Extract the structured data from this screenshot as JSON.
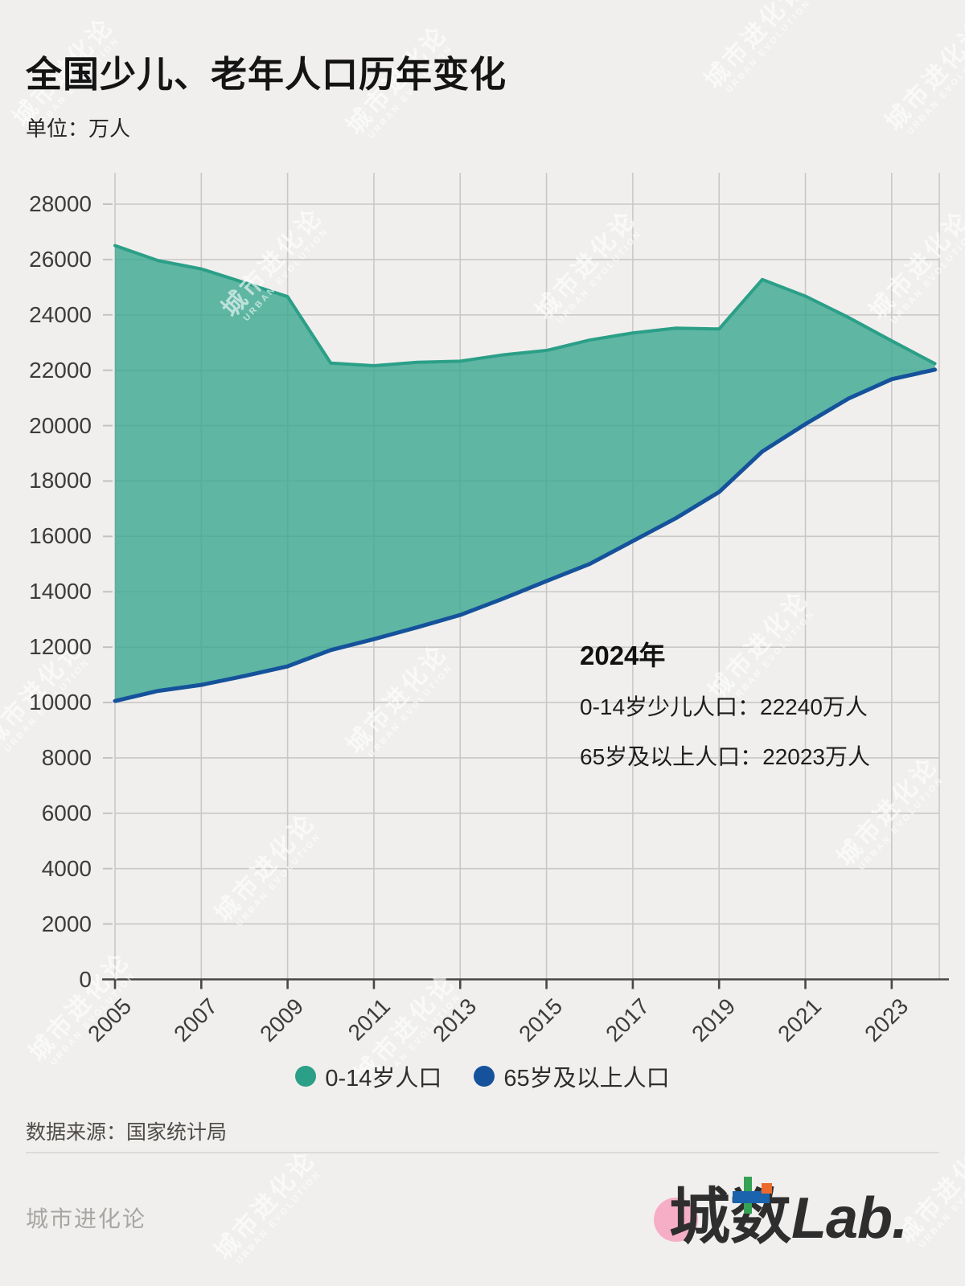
{
  "header": {
    "title": "全国少儿、老年人口历年变化",
    "unit": "单位：万人"
  },
  "chart_data": {
    "type": "area",
    "title": "全国少儿、老年人口历年变化",
    "unit": "万人",
    "x": [
      2005,
      2006,
      2007,
      2008,
      2009,
      2010,
      2011,
      2012,
      2013,
      2014,
      2015,
      2016,
      2017,
      2018,
      2019,
      2020,
      2021,
      2022,
      2023,
      2024
    ],
    "series": [
      {
        "name": "0-14岁人口",
        "color": "#2b9f87",
        "fill": "rgba(61,169,147,0.82)",
        "values": [
          26504,
          25961,
          25660,
          25166,
          24659,
          22259,
          22164,
          22287,
          22329,
          22558,
          22715,
          23092,
          23348,
          23523,
          23492,
          25277,
          24678,
          23908,
          23063,
          22240
        ]
      },
      {
        "name": "65岁及以上人口",
        "color": "#15529b",
        "values": [
          10055,
          10419,
          10636,
          10956,
          11307,
          11894,
          12288,
          12714,
          13161,
          13755,
          14386,
          15003,
          15831,
          16658,
          17603,
          19064,
          20056,
          20978,
          21676,
          22023
        ]
      }
    ],
    "ylim": [
      0,
      28000
    ],
    "ytick_step": 2000,
    "xticks": [
      2005,
      2007,
      2009,
      2011,
      2013,
      2015,
      2017,
      2019,
      2021,
      2023
    ],
    "grid": true,
    "legend_position": "bottom",
    "band": "area filled between the two series"
  },
  "annotation": {
    "title": "2024年",
    "line1": "0-14岁少儿人口：22240万人",
    "line2": "65岁及以上人口：22023万人"
  },
  "footer": {
    "source": "数据来源：国家统计局",
    "brand": "城市进化论",
    "logo_cheng": "城",
    "logo_shu": "数",
    "logo_lab": "Lab."
  },
  "watermark": {
    "zh": "城市进化论",
    "en": "URBAN EVOLUTION"
  },
  "colors": {
    "background": "#f0efed",
    "grid": "#c9c8c6",
    "axis": "#474747",
    "children_line": "#2b9f87",
    "children_fill": "rgba(61,169,147,0.82)",
    "elderly_line": "#15529b",
    "logo_pink": "#f6aec6"
  }
}
